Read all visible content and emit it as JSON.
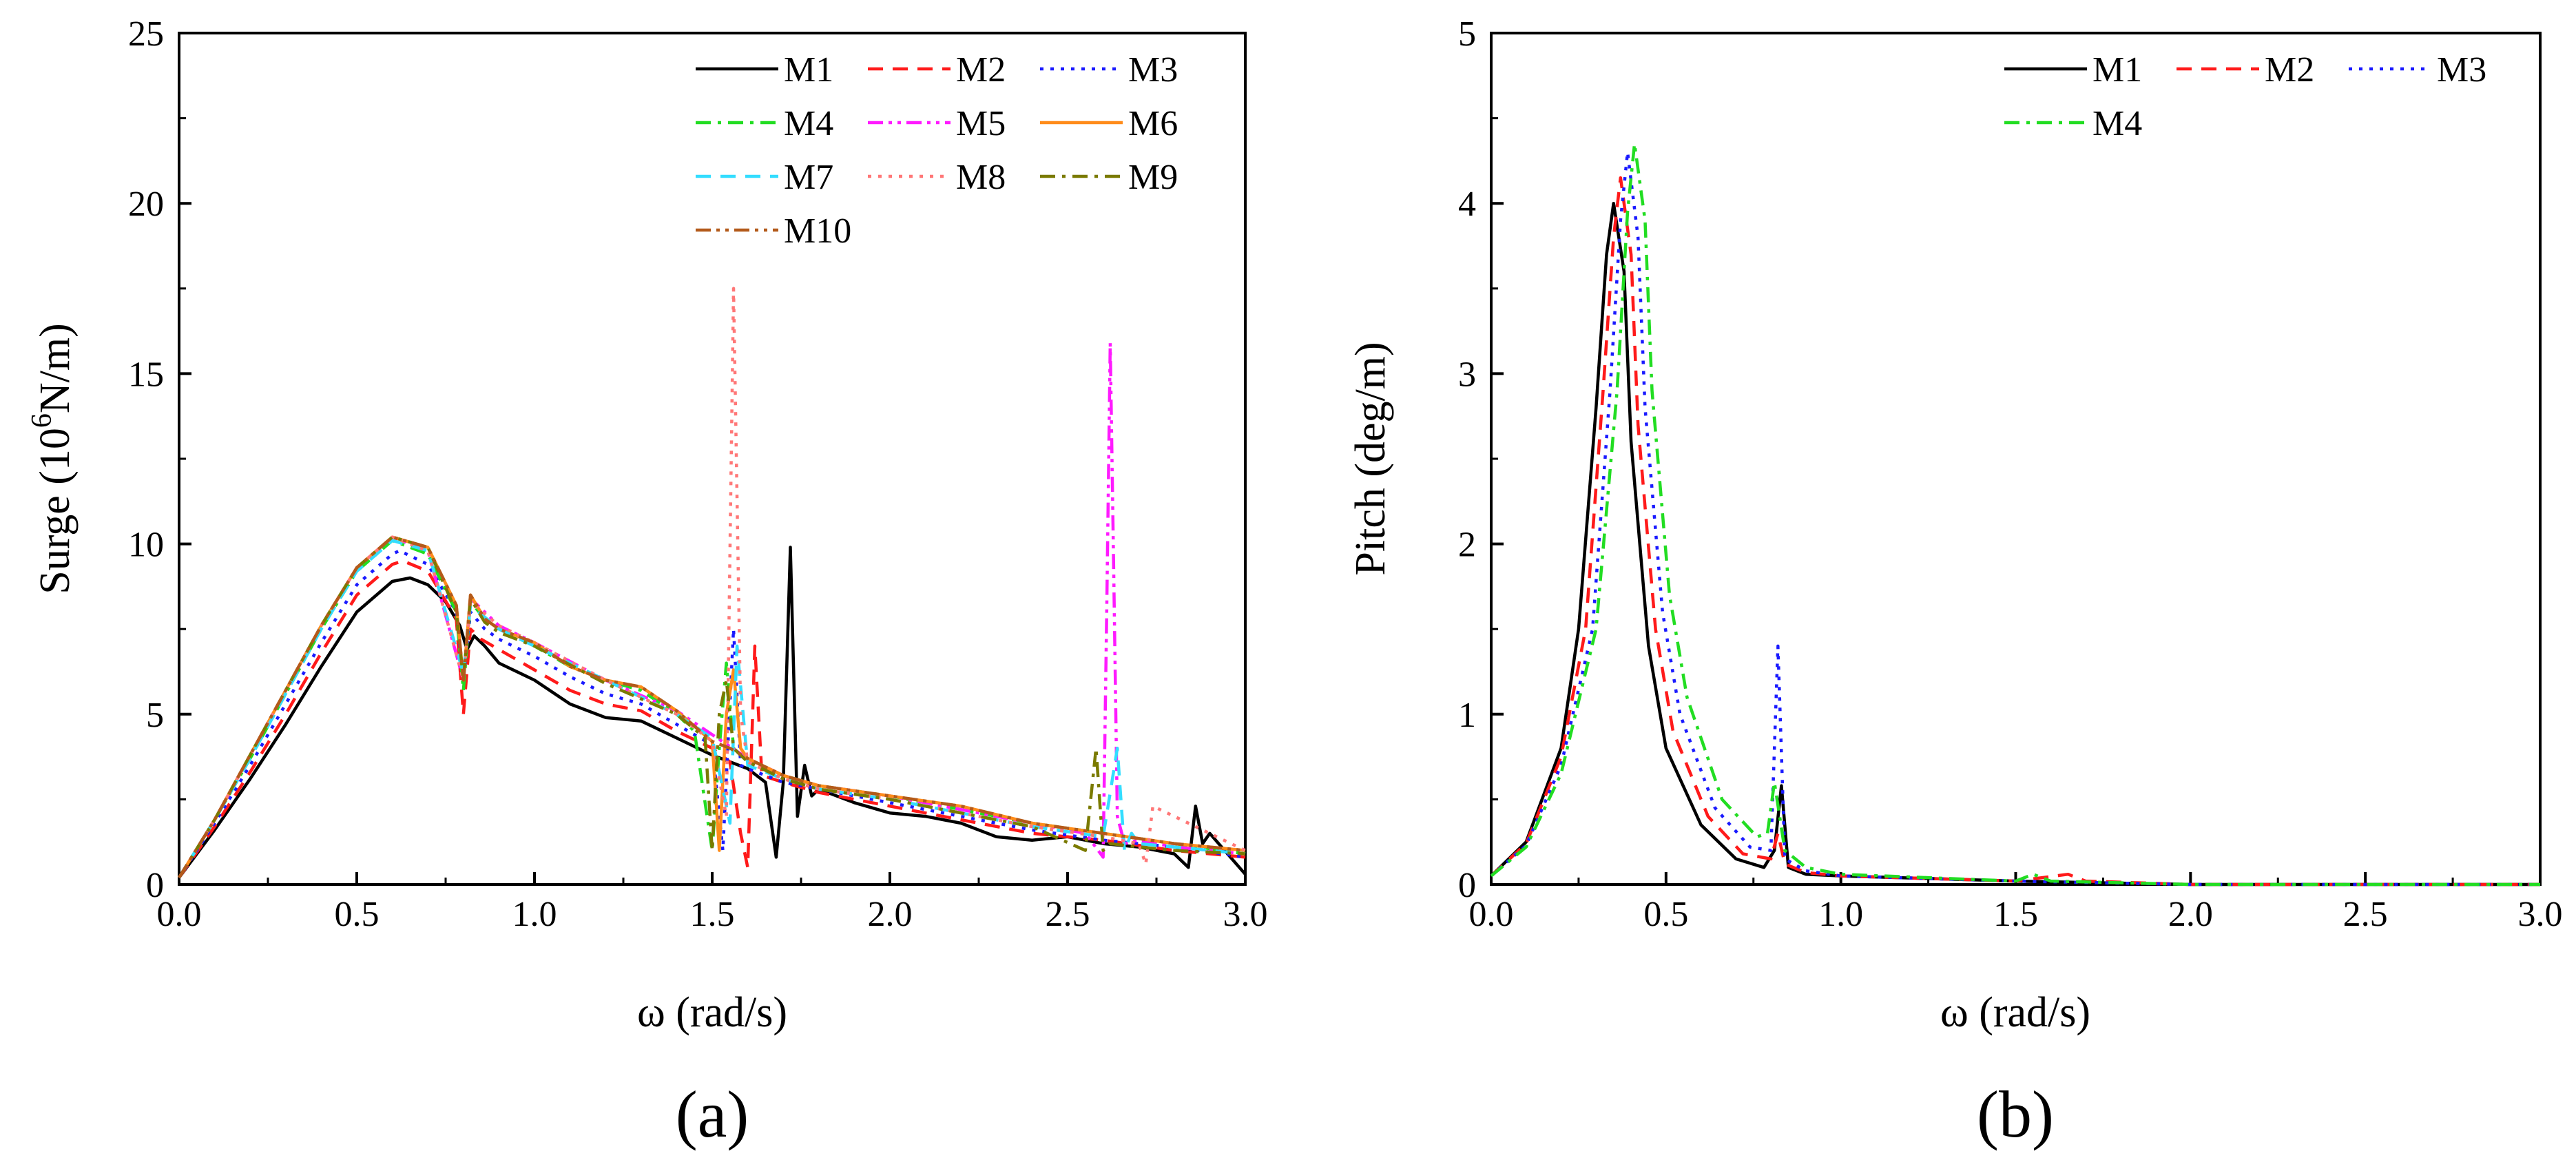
{
  "chart_data": [
    {
      "panel_label": "(a)",
      "type": "line",
      "title": "",
      "xlabel": "ω (rad/s)",
      "ylabel_main": "Surge (10",
      "ylabel_sup": "6",
      "ylabel_end": "N/m)",
      "xlim": [
        0,
        3.0
      ],
      "ylim": [
        0,
        25
      ],
      "xticks": [
        "0.0",
        "0.5",
        "1.0",
        "1.5",
        "2.0",
        "2.5",
        "3.0"
      ],
      "yticks": [
        "0",
        "5",
        "10",
        "15",
        "20",
        "25"
      ],
      "grid": false,
      "legend_position": "top-right",
      "series": [
        {
          "name": "M1",
          "color": "#000000",
          "dash": "solid",
          "x": [
            0,
            0.1,
            0.2,
            0.3,
            0.4,
            0.5,
            0.6,
            0.65,
            0.7,
            0.75,
            0.79,
            0.81,
            0.83,
            0.86,
            0.9,
            1.0,
            1.1,
            1.2,
            1.3,
            1.4,
            1.5,
            1.6,
            1.65,
            1.68,
            1.7,
            1.72,
            1.74,
            1.76,
            1.78,
            1.8,
            1.9,
            2.0,
            2.1,
            2.2,
            2.3,
            2.4,
            2.5,
            2.6,
            2.7,
            2.8,
            2.84,
            2.86,
            2.88,
            2.9,
            3.0
          ],
          "y": [
            0.2,
            1.6,
            3.1,
            4.7,
            6.4,
            8.0,
            8.9,
            9.0,
            8.8,
            8.3,
            7.6,
            6.9,
            7.3,
            7.0,
            6.5,
            6.0,
            5.3,
            4.9,
            4.8,
            4.3,
            3.8,
            3.4,
            3.0,
            0.8,
            3.0,
            9.9,
            2.0,
            3.5,
            2.6,
            2.8,
            2.4,
            2.1,
            2.0,
            1.8,
            1.4,
            1.3,
            1.4,
            1.2,
            1.1,
            0.9,
            0.5,
            2.3,
            1.2,
            1.5,
            0.3
          ]
        },
        {
          "name": "M2",
          "color": "#ff1a1a",
          "dash": "dashed",
          "x": [
            0,
            0.1,
            0.2,
            0.3,
            0.4,
            0.5,
            0.6,
            0.63,
            0.7,
            0.78,
            0.8,
            0.82,
            0.85,
            0.9,
            1.0,
            1.1,
            1.2,
            1.3,
            1.4,
            1.5,
            1.55,
            1.58,
            1.6,
            1.62,
            1.64,
            1.7,
            1.8,
            2.0,
            2.2,
            2.4,
            2.6,
            2.8,
            3.0
          ],
          "y": [
            0.2,
            1.7,
            3.3,
            5.0,
            6.8,
            8.5,
            9.4,
            9.5,
            9.2,
            7.8,
            5.0,
            7.5,
            7.2,
            6.9,
            6.3,
            5.7,
            5.3,
            5.1,
            4.5,
            4.0,
            3.6,
            1.5,
            0.5,
            7.0,
            3.2,
            3.0,
            2.7,
            2.3,
            1.9,
            1.5,
            1.3,
            1.0,
            0.8
          ]
        },
        {
          "name": "M3",
          "color": "#1a1aff",
          "dash": "dotted",
          "x": [
            0,
            0.1,
            0.2,
            0.3,
            0.4,
            0.5,
            0.6,
            0.62,
            0.7,
            0.78,
            0.8,
            0.82,
            0.86,
            0.9,
            1.0,
            1.1,
            1.2,
            1.3,
            1.4,
            1.5,
            1.53,
            1.56,
            1.58,
            1.6,
            1.7,
            1.8,
            2.0,
            2.2,
            2.4,
            2.6,
            2.8,
            3.0
          ],
          "y": [
            0.2,
            1.8,
            3.5,
            5.3,
            7.1,
            8.8,
            9.7,
            9.8,
            9.4,
            8.0,
            6.0,
            8.0,
            7.5,
            7.2,
            6.7,
            6.1,
            5.6,
            5.3,
            4.7,
            4.1,
            1.0,
            7.5,
            3.5,
            3.4,
            3.0,
            2.8,
            2.4,
            2.0,
            1.6,
            1.3,
            1.1,
            0.8
          ]
        },
        {
          "name": "M4",
          "color": "#22dd22",
          "dash": "dashdot",
          "x": [
            0,
            0.1,
            0.2,
            0.3,
            0.4,
            0.5,
            0.6,
            0.7,
            0.78,
            0.8,
            0.82,
            0.86,
            0.9,
            1.0,
            1.1,
            1.2,
            1.3,
            1.4,
            1.45,
            1.5,
            1.52,
            1.54,
            1.56,
            1.6,
            1.7,
            1.8,
            2.0,
            2.2,
            2.4,
            2.6,
            2.8,
            3.0
          ],
          "y": [
            0.2,
            1.9,
            3.7,
            5.6,
            7.5,
            9.2,
            10.1,
            9.7,
            8.0,
            5.7,
            8.3,
            7.8,
            7.5,
            7.0,
            6.4,
            6.0,
            5.7,
            5.0,
            4.5,
            1.0,
            4.0,
            6.5,
            4.0,
            3.6,
            3.2,
            2.9,
            2.6,
            2.2,
            1.8,
            1.5,
            1.2,
            0.9
          ]
        },
        {
          "name": "M5",
          "color": "#ff1aff",
          "dash": "dashdotdot",
          "x": [
            0,
            0.1,
            0.2,
            0.3,
            0.4,
            0.5,
            0.6,
            0.7,
            0.8,
            0.82,
            0.9,
            1.0,
            1.2,
            1.4,
            1.6,
            1.7,
            1.8,
            2.0,
            2.2,
            2.4,
            2.55,
            2.6,
            2.61,
            2.62,
            2.63,
            2.64,
            2.66,
            2.7,
            2.8,
            3.0
          ],
          "y": [
            0.2,
            1.9,
            3.8,
            5.7,
            7.6,
            9.3,
            10.2,
            9.8,
            6.0,
            8.4,
            7.6,
            7.1,
            6.0,
            5.1,
            3.7,
            3.2,
            2.9,
            2.6,
            2.2,
            1.8,
            1.5,
            0.8,
            8.0,
            15.9,
            9.0,
            2.0,
            1.2,
            1.3,
            1.1,
            0.9
          ]
        },
        {
          "name": "M6",
          "color": "#ff8c1a",
          "dash": "solid",
          "x": [
            0,
            0.1,
            0.2,
            0.3,
            0.4,
            0.5,
            0.6,
            0.7,
            0.78,
            0.8,
            0.82,
            0.86,
            0.9,
            1.0,
            1.1,
            1.2,
            1.3,
            1.4,
            1.5,
            1.52,
            1.54,
            1.56,
            1.58,
            1.6,
            1.7,
            1.8,
            2.0,
            2.2,
            2.4,
            2.6,
            2.8,
            3.0
          ],
          "y": [
            0.2,
            1.9,
            3.8,
            5.7,
            7.6,
            9.3,
            10.2,
            9.9,
            8.2,
            6.0,
            8.5,
            7.8,
            7.5,
            7.1,
            6.4,
            6.0,
            5.8,
            5.1,
            4.2,
            1.0,
            5.0,
            6.3,
            4.0,
            3.7,
            3.2,
            2.9,
            2.6,
            2.3,
            1.8,
            1.5,
            1.2,
            1.0
          ]
        },
        {
          "name": "M7",
          "color": "#33ddff",
          "dash": "dashed",
          "x": [
            0,
            0.1,
            0.2,
            0.3,
            0.4,
            0.5,
            0.6,
            0.7,
            0.8,
            0.82,
            0.9,
            1.0,
            1.2,
            1.4,
            1.5,
            1.55,
            1.57,
            1.6,
            1.7,
            1.8,
            2.0,
            2.2,
            2.4,
            2.6,
            2.64,
            2.66,
            2.68,
            2.7,
            2.8,
            3.0
          ],
          "y": [
            0.2,
            1.9,
            3.7,
            5.6,
            7.5,
            9.2,
            10.1,
            9.8,
            6.2,
            8.2,
            7.5,
            7.0,
            6.0,
            5.0,
            4.3,
            1.8,
            7.0,
            3.5,
            3.1,
            2.8,
            2.5,
            2.1,
            1.7,
            1.4,
            4.0,
            1.0,
            1.5,
            1.2,
            1.1,
            0.9
          ]
        },
        {
          "name": "M8",
          "color": "#ff7777",
          "dash": "dotted",
          "x": [
            0,
            0.1,
            0.2,
            0.3,
            0.4,
            0.5,
            0.6,
            0.7,
            0.8,
            0.82,
            0.9,
            1.0,
            1.2,
            1.4,
            1.5,
            1.54,
            1.56,
            1.58,
            1.6,
            1.7,
            1.8,
            2.0,
            2.2,
            2.4,
            2.6,
            2.7,
            2.72,
            2.74,
            2.8,
            3.0
          ],
          "y": [
            0.2,
            1.9,
            3.8,
            5.7,
            7.6,
            9.3,
            10.2,
            9.8,
            6.0,
            8.3,
            7.6,
            7.1,
            6.0,
            5.0,
            4.2,
            2.0,
            17.5,
            5.0,
            3.6,
            3.1,
            2.8,
            2.5,
            2.1,
            1.7,
            1.4,
            1.2,
            0.6,
            2.3,
            2.0,
            1.0
          ]
        },
        {
          "name": "M9",
          "color": "#7a7a00",
          "dash": "dashdot",
          "x": [
            0,
            0.1,
            0.2,
            0.3,
            0.4,
            0.5,
            0.6,
            0.7,
            0.78,
            0.8,
            0.82,
            0.86,
            0.9,
            1.0,
            1.2,
            1.4,
            1.48,
            1.5,
            1.52,
            1.54,
            1.56,
            1.6,
            1.7,
            1.8,
            2.0,
            2.2,
            2.4,
            2.55,
            2.58,
            2.6,
            2.62,
            2.7,
            2.8,
            3.0
          ],
          "y": [
            0.2,
            1.9,
            3.8,
            5.7,
            7.6,
            9.3,
            10.2,
            9.9,
            8.0,
            6.0,
            8.4,
            7.7,
            7.4,
            7.0,
            5.9,
            5.0,
            4.3,
            1.0,
            5.0,
            6.0,
            4.0,
            3.6,
            3.1,
            2.8,
            2.5,
            2.1,
            1.7,
            1.0,
            4.0,
            1.0,
            1.2,
            1.1,
            1.0,
            0.9
          ]
        },
        {
          "name": "M10",
          "color": "#b35a1a",
          "dash": "dashdotdot",
          "x": [
            0,
            0.1,
            0.2,
            0.3,
            0.4,
            0.5,
            0.6,
            0.7,
            0.78,
            0.8,
            0.82,
            0.86,
            0.9,
            1.0,
            1.1,
            1.2,
            1.3,
            1.4,
            1.5,
            1.55,
            1.6,
            1.7,
            1.8,
            2.0,
            2.2,
            2.4,
            2.6,
            2.8,
            3.0
          ],
          "y": [
            0.2,
            1.9,
            3.8,
            5.7,
            7.6,
            9.3,
            10.2,
            9.9,
            8.2,
            6.0,
            8.5,
            7.8,
            7.5,
            7.1,
            6.4,
            6.0,
            5.8,
            5.1,
            4.2,
            4.0,
            3.7,
            3.2,
            2.9,
            2.6,
            2.3,
            1.8,
            1.5,
            1.2,
            1.0
          ]
        }
      ]
    },
    {
      "panel_label": "(b)",
      "type": "line",
      "title": "",
      "xlabel": "ω (rad/s)",
      "ylabel_main": "Pitch (deg/m)",
      "ylabel_sup": "",
      "ylabel_end": "",
      "xlim": [
        0,
        3.0
      ],
      "ylim": [
        0,
        5
      ],
      "xticks": [
        "0.0",
        "0.5",
        "1.0",
        "1.5",
        "2.0",
        "2.5",
        "3.0"
      ],
      "yticks": [
        "0",
        "1",
        "2",
        "3",
        "4",
        "5"
      ],
      "grid": false,
      "legend_position": "top-right",
      "series": [
        {
          "name": "M1",
          "color": "#000000",
          "dash": "solid",
          "x": [
            0,
            0.1,
            0.2,
            0.25,
            0.3,
            0.33,
            0.35,
            0.38,
            0.4,
            0.45,
            0.5,
            0.6,
            0.7,
            0.78,
            0.81,
            0.83,
            0.85,
            0.9,
            1.0,
            1.5,
            2.0,
            3.0
          ],
          "y": [
            0.05,
            0.25,
            0.8,
            1.5,
            2.8,
            3.7,
            4.0,
            3.6,
            2.6,
            1.4,
            0.8,
            0.35,
            0.15,
            0.1,
            0.2,
            0.58,
            0.1,
            0.06,
            0.05,
            0.02,
            0.0,
            0.0
          ]
        },
        {
          "name": "M2",
          "color": "#ff1a1a",
          "dash": "dashed",
          "x": [
            0,
            0.1,
            0.2,
            0.27,
            0.32,
            0.35,
            0.37,
            0.4,
            0.42,
            0.47,
            0.52,
            0.62,
            0.72,
            0.8,
            0.82,
            0.84,
            0.9,
            1.0,
            1.5,
            1.65,
            1.7,
            2.0,
            3.0
          ],
          "y": [
            0.05,
            0.24,
            0.75,
            1.5,
            2.9,
            3.8,
            4.15,
            3.7,
            2.7,
            1.5,
            0.9,
            0.4,
            0.18,
            0.15,
            0.3,
            0.12,
            0.07,
            0.05,
            0.02,
            0.06,
            0.02,
            0.0,
            0.0
          ]
        },
        {
          "name": "M3",
          "color": "#1a1aff",
          "dash": "dotted",
          "x": [
            0,
            0.1,
            0.2,
            0.29,
            0.34,
            0.37,
            0.39,
            0.42,
            0.44,
            0.49,
            0.54,
            0.64,
            0.74,
            0.8,
            0.82,
            0.84,
            0.9,
            1.0,
            1.5,
            2.0,
            3.0
          ],
          "y": [
            0.05,
            0.23,
            0.7,
            1.5,
            2.9,
            3.9,
            4.3,
            3.8,
            2.8,
            1.6,
            1.0,
            0.45,
            0.22,
            0.2,
            1.4,
            0.15,
            0.08,
            0.05,
            0.02,
            0.0,
            0.0
          ]
        },
        {
          "name": "M4",
          "color": "#22dd22",
          "dash": "dashdot",
          "x": [
            0,
            0.1,
            0.2,
            0.3,
            0.36,
            0.39,
            0.41,
            0.44,
            0.46,
            0.51,
            0.56,
            0.66,
            0.76,
            0.79,
            0.81,
            0.84,
            0.9,
            1.0,
            1.5,
            1.55,
            1.6,
            2.0,
            3.0
          ],
          "y": [
            0.05,
            0.22,
            0.65,
            1.5,
            2.9,
            3.95,
            4.35,
            3.9,
            2.9,
            1.7,
            1.1,
            0.5,
            0.28,
            0.3,
            0.6,
            0.2,
            0.1,
            0.06,
            0.02,
            0.06,
            0.02,
            0.0,
            0.0
          ]
        }
      ]
    }
  ]
}
